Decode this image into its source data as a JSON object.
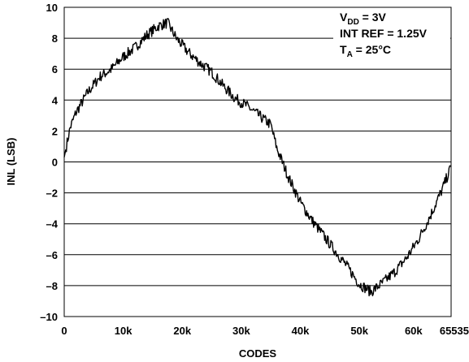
{
  "chart_data": {
    "type": "line",
    "title": "",
    "xlabel": "CODES",
    "ylabel": "INL (LSB)",
    "xlim": [
      0,
      65535
    ],
    "ylim": [
      -10,
      10
    ],
    "x_ticks": [
      0,
      10000,
      20000,
      30000,
      40000,
      50000,
      60000,
      65535
    ],
    "x_tick_labels": [
      "0",
      "10k",
      "20k",
      "30k",
      "40k",
      "50k",
      "60k",
      "65535"
    ],
    "y_ticks": [
      10,
      8,
      6,
      4,
      2,
      0,
      -2,
      -4,
      -6,
      -8,
      -10
    ],
    "y_tick_labels": [
      "10",
      "8",
      "6",
      "4",
      "2",
      "0",
      "–2",
      "–4",
      "–6",
      "–8",
      "–10"
    ],
    "grid": "horizontal",
    "annotation": {
      "line1": {
        "main": "V",
        "sub": "DD",
        "rest": " = 3V"
      },
      "line2": "INT REF = 1.25V",
      "line3": {
        "main": "T",
        "sub": "A",
        "rest": " = 25°C"
      }
    },
    "series": [
      {
        "x": [
          0,
          1000,
          2000,
          4000,
          6000,
          8000,
          10000,
          12000,
          14000,
          16000,
          17500,
          19000,
          21000,
          23000,
          25000,
          27000,
          29000,
          31000,
          33000,
          35000,
          36000,
          38000,
          40000,
          42000,
          44000,
          46000,
          48000,
          50000,
          52000,
          54000,
          56000,
          58000,
          60000,
          62000,
          64000,
          65535
        ],
        "y": [
          0.3,
          2.2,
          3.2,
          4.5,
          5.5,
          6.0,
          6.8,
          7.4,
          8.2,
          8.8,
          9.0,
          8.0,
          7.1,
          6.4,
          5.8,
          4.9,
          4.1,
          3.6,
          3.0,
          2.4,
          0.9,
          -1.0,
          -2.6,
          -3.8,
          -4.8,
          -5.8,
          -6.8,
          -7.9,
          -8.4,
          -7.8,
          -7.1,
          -6.2,
          -5.0,
          -3.5,
          -1.8,
          -0.3
        ]
      }
    ]
  }
}
